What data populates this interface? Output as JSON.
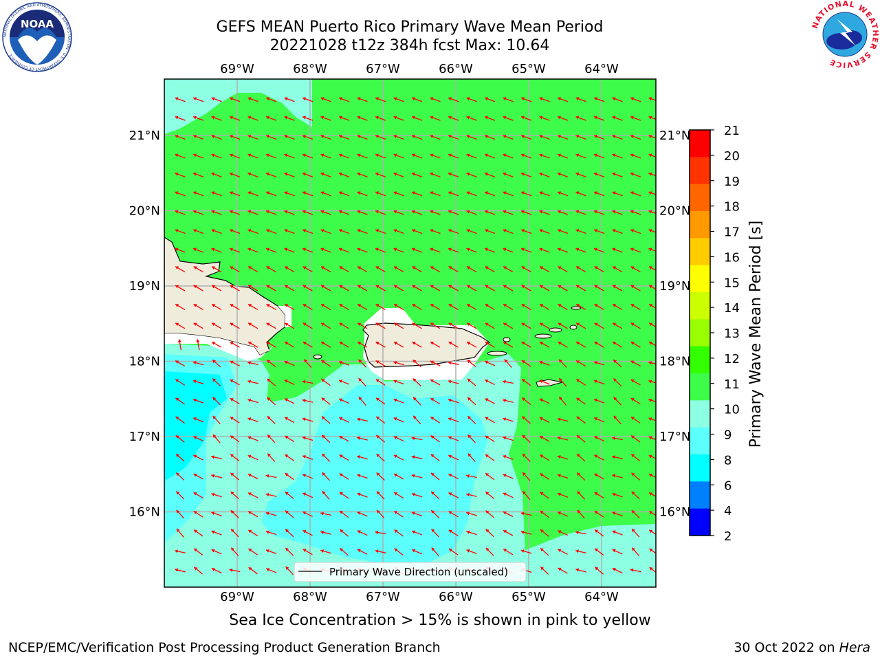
{
  "header": {
    "title_line1": "GEFS MEAN Puerto Rico Primary Wave Mean Period",
    "title_line2": "20221028 t12z 384h fcst   Max: 10.64"
  },
  "logos": {
    "left": "NOAA",
    "left_ring": "NATIONAL OCEANIC AND ATMOSPHERIC ADMINISTRATION · U.S. DEPARTMENT OF COMMERCE",
    "right_ring": "NATIONAL WEATHER SERVICE"
  },
  "map": {
    "lon_labels": [
      "69°W",
      "68°W",
      "67°W",
      "66°W",
      "65°W",
      "64°W"
    ],
    "lat_labels": [
      "21°N",
      "20°N",
      "19°N",
      "18°N",
      "17°N",
      "16°N"
    ],
    "legend_label": "Primary Wave Direction (unscaled)",
    "colors": {
      "land": "#efecdc",
      "green": "#3dfc4a",
      "aquamarine": "#8dffe3",
      "light_cyan": "#5cfffb",
      "cyan": "#00ffff",
      "arrow": "#ff0000",
      "grid": "#b0b0b0"
    }
  },
  "colorbar": {
    "label": "Primary Wave Mean Period [s]",
    "ticks": [
      "21",
      "20",
      "19",
      "18",
      "17",
      "16",
      "15",
      "14",
      "13",
      "12",
      "11",
      "10",
      "9",
      "8",
      "6",
      "4",
      "2"
    ],
    "colors": [
      "#ff0000",
      "#ff3300",
      "#ff6600",
      "#ff9900",
      "#ffcc00",
      "#ffff00",
      "#ccff00",
      "#99ff00",
      "#33ff00",
      "#3dfc4a",
      "#8dffe3",
      "#5cfffb",
      "#00ffff",
      "#0080ff",
      "#0000ff"
    ]
  },
  "notes": {
    "sea_ice": "Sea Ice Concentration > 15% is shown in pink to yellow",
    "producer": "NCEP/EMC/Verification Post Processing Product Generation Branch",
    "date_prefix": "30 Oct 2022 on ",
    "machine": "Hera"
  }
}
